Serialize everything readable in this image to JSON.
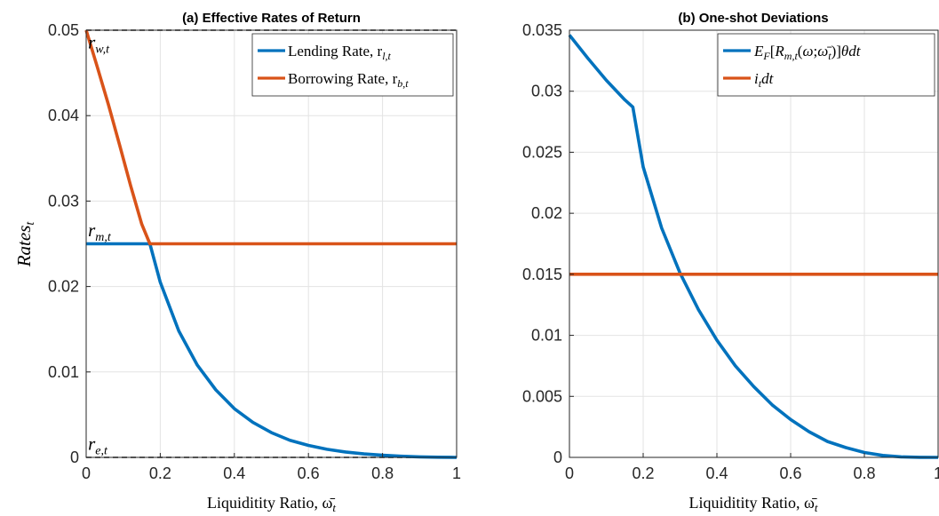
{
  "chart_data": [
    {
      "type": "line",
      "title": "(a) Effective Rates of Return",
      "xlabel": "Liquiditity Ratio, ω̄",
      "xlabel_sub": "t",
      "ylabel": "Rates",
      "ylabel_sub": "t",
      "xlim": [
        0,
        1
      ],
      "ylim": [
        0,
        0.05
      ],
      "xticks": [
        "0",
        "0.2",
        "0.4",
        "0.6",
        "0.8",
        "1"
      ],
      "xtick_values": [
        0,
        0.2,
        0.4,
        0.6,
        0.8,
        1
      ],
      "yticks": [
        "0",
        "0.01",
        "0.02",
        "0.03",
        "0.04",
        "0.05"
      ],
      "ytick_values": [
        0,
        0.01,
        0.02,
        0.03,
        0.04,
        0.05
      ],
      "grid": true,
      "legend_position": "top-right",
      "series": [
        {
          "name": "Lending Rate, r",
          "name_sub": "l,t",
          "color": "#0072BD",
          "x": [
            0,
            0.05,
            0.1,
            0.15,
            0.172,
            0.2,
            0.25,
            0.3,
            0.35,
            0.4,
            0.45,
            0.5,
            0.55,
            0.6,
            0.65,
            0.7,
            0.75,
            0.8,
            0.85,
            0.9,
            0.95,
            1.0
          ],
          "y": [
            0.025,
            0.025,
            0.025,
            0.025,
            0.025,
            0.0205,
            0.0148,
            0.0108,
            0.0079,
            0.0057,
            0.0041,
            0.0029,
            0.002,
            0.0014,
            0.00095,
            0.00063,
            0.00041,
            0.00025,
            0.00014,
            6e-05,
            2e-05,
            0
          ]
        },
        {
          "name": "Borrowing Rate, r",
          "name_sub": "b,t",
          "color": "#D95319",
          "x": [
            0,
            0.03,
            0.06,
            0.09,
            0.12,
            0.15,
            0.172,
            0.25,
            0.5,
            0.75,
            1.0
          ],
          "y": [
            0.05,
            0.0457,
            0.0413,
            0.0366,
            0.0318,
            0.0273,
            0.025,
            0.025,
            0.025,
            0.025,
            0.025
          ]
        }
      ],
      "reference_lines": [
        {
          "y": 0.05,
          "style": "dashed",
          "color": "#000000"
        },
        {
          "y": 0.0,
          "style": "dashed",
          "color": "#000000"
        }
      ],
      "annotations": [
        {
          "symbol": "r",
          "sub": "w,t",
          "x": 0.005,
          "y": 0.0485
        },
        {
          "symbol": "r",
          "sub": "m,t",
          "x": 0.005,
          "y": 0.0265
        },
        {
          "symbol": "r",
          "sub": "e,t",
          "x": 0.005,
          "y": 0.0015
        }
      ]
    },
    {
      "type": "line",
      "title": "(b) One-shot Deviations",
      "xlabel": "Liquiditity Ratio, ω̄",
      "xlabel_sub": "t",
      "xlim": [
        0,
        1
      ],
      "ylim": [
        0,
        0.035
      ],
      "xticks": [
        "0",
        "0.2",
        "0.4",
        "0.6",
        "0.8",
        "1"
      ],
      "xtick_values": [
        0,
        0.2,
        0.4,
        0.6,
        0.8,
        1
      ],
      "yticks": [
        "0",
        "0.005",
        "0.01",
        "0.015",
        "0.02",
        "0.025",
        "0.03",
        "0.035"
      ],
      "ytick_values": [
        0,
        0.005,
        0.01,
        0.015,
        0.02,
        0.025,
        0.03,
        0.035
      ],
      "grid": true,
      "legend_position": "top-right",
      "series": [
        {
          "name": "E_F[R_m,t(ω;ω̄_t)]θdt",
          "color": "#0072BD",
          "x": [
            0,
            0.05,
            0.1,
            0.15,
            0.172,
            0.2,
            0.25,
            0.3,
            0.35,
            0.4,
            0.45,
            0.5,
            0.55,
            0.6,
            0.65,
            0.7,
            0.75,
            0.8,
            0.85,
            0.9,
            0.95,
            1.0
          ],
          "y": [
            0.0346,
            0.0327,
            0.0309,
            0.0293,
            0.0287,
            0.0238,
            0.0188,
            0.0151,
            0.0121,
            0.0096,
            0.0075,
            0.0058,
            0.0043,
            0.0031,
            0.0021,
            0.0013,
            0.0008,
            0.0004,
            0.00016,
            4e-05,
            5e-06,
            0
          ]
        },
        {
          "name": "i_t dt",
          "color": "#D95319",
          "x": [
            0,
            1
          ],
          "y": [
            0.015,
            0.015
          ]
        }
      ]
    }
  ]
}
